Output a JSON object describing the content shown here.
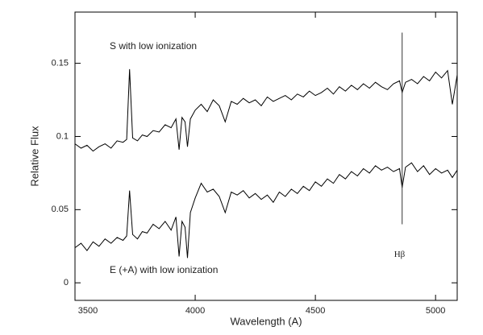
{
  "chart_data": {
    "type": "line",
    "xlabel": "Wavelength (A)",
    "ylabel": "Relative Flux",
    "xlim": [
      3500,
      5090
    ],
    "ylim": [
      -0.012,
      0.185
    ],
    "xticks": [
      3500,
      4000,
      4500,
      5000
    ],
    "yticks": [
      0,
      0.05,
      0.1,
      0.15
    ],
    "x": [
      3500,
      3525,
      3550,
      3575,
      3600,
      3625,
      3650,
      3675,
      3700,
      3715,
      3727,
      3740,
      3760,
      3780,
      3800,
      3825,
      3850,
      3875,
      3900,
      3920,
      3933,
      3945,
      3958,
      3968,
      3980,
      4000,
      4025,
      4050,
      4075,
      4100,
      4125,
      4150,
      4175,
      4200,
      4225,
      4250,
      4275,
      4300,
      4325,
      4350,
      4375,
      4400,
      4425,
      4450,
      4475,
      4500,
      4525,
      4550,
      4575,
      4600,
      4625,
      4650,
      4675,
      4700,
      4725,
      4750,
      4775,
      4800,
      4825,
      4850,
      4861,
      4875,
      4900,
      4925,
      4950,
      4975,
      5000,
      5025,
      5050,
      5070,
      5090
    ],
    "series": [
      {
        "name": "S with low ionization",
        "color": "#000000",
        "values": [
          0.095,
          0.092,
          0.094,
          0.09,
          0.093,
          0.095,
          0.092,
          0.097,
          0.096,
          0.098,
          0.146,
          0.099,
          0.097,
          0.101,
          0.1,
          0.104,
          0.103,
          0.108,
          0.106,
          0.112,
          0.091,
          0.113,
          0.11,
          0.093,
          0.112,
          0.118,
          0.122,
          0.117,
          0.125,
          0.121,
          0.11,
          0.124,
          0.122,
          0.126,
          0.123,
          0.125,
          0.121,
          0.127,
          0.124,
          0.126,
          0.128,
          0.125,
          0.129,
          0.127,
          0.131,
          0.128,
          0.13,
          0.133,
          0.129,
          0.134,
          0.131,
          0.135,
          0.132,
          0.136,
          0.133,
          0.137,
          0.134,
          0.132,
          0.136,
          0.138,
          0.13,
          0.137,
          0.139,
          0.136,
          0.141,
          0.138,
          0.144,
          0.14,
          0.145,
          0.122,
          0.142
        ]
      },
      {
        "name": "E (+A) with low ionization",
        "color": "#000000",
        "values": [
          0.024,
          0.027,
          0.022,
          0.028,
          0.025,
          0.03,
          0.027,
          0.031,
          0.029,
          0.032,
          0.063,
          0.033,
          0.03,
          0.035,
          0.034,
          0.04,
          0.037,
          0.042,
          0.036,
          0.045,
          0.018,
          0.042,
          0.038,
          0.017,
          0.048,
          0.058,
          0.068,
          0.062,
          0.064,
          0.059,
          0.048,
          0.062,
          0.06,
          0.063,
          0.058,
          0.061,
          0.057,
          0.06,
          0.055,
          0.062,
          0.059,
          0.064,
          0.061,
          0.066,
          0.063,
          0.069,
          0.066,
          0.071,
          0.068,
          0.074,
          0.071,
          0.076,
          0.073,
          0.078,
          0.075,
          0.08,
          0.077,
          0.079,
          0.076,
          0.078,
          0.065,
          0.079,
          0.082,
          0.076,
          0.08,
          0.074,
          0.078,
          0.075,
          0.077,
          0.072,
          0.077
        ]
      }
    ],
    "annotations": [
      {
        "text": "Hβ",
        "x": 4861,
        "y": [
          0.04,
          0.171
        ]
      }
    ]
  }
}
